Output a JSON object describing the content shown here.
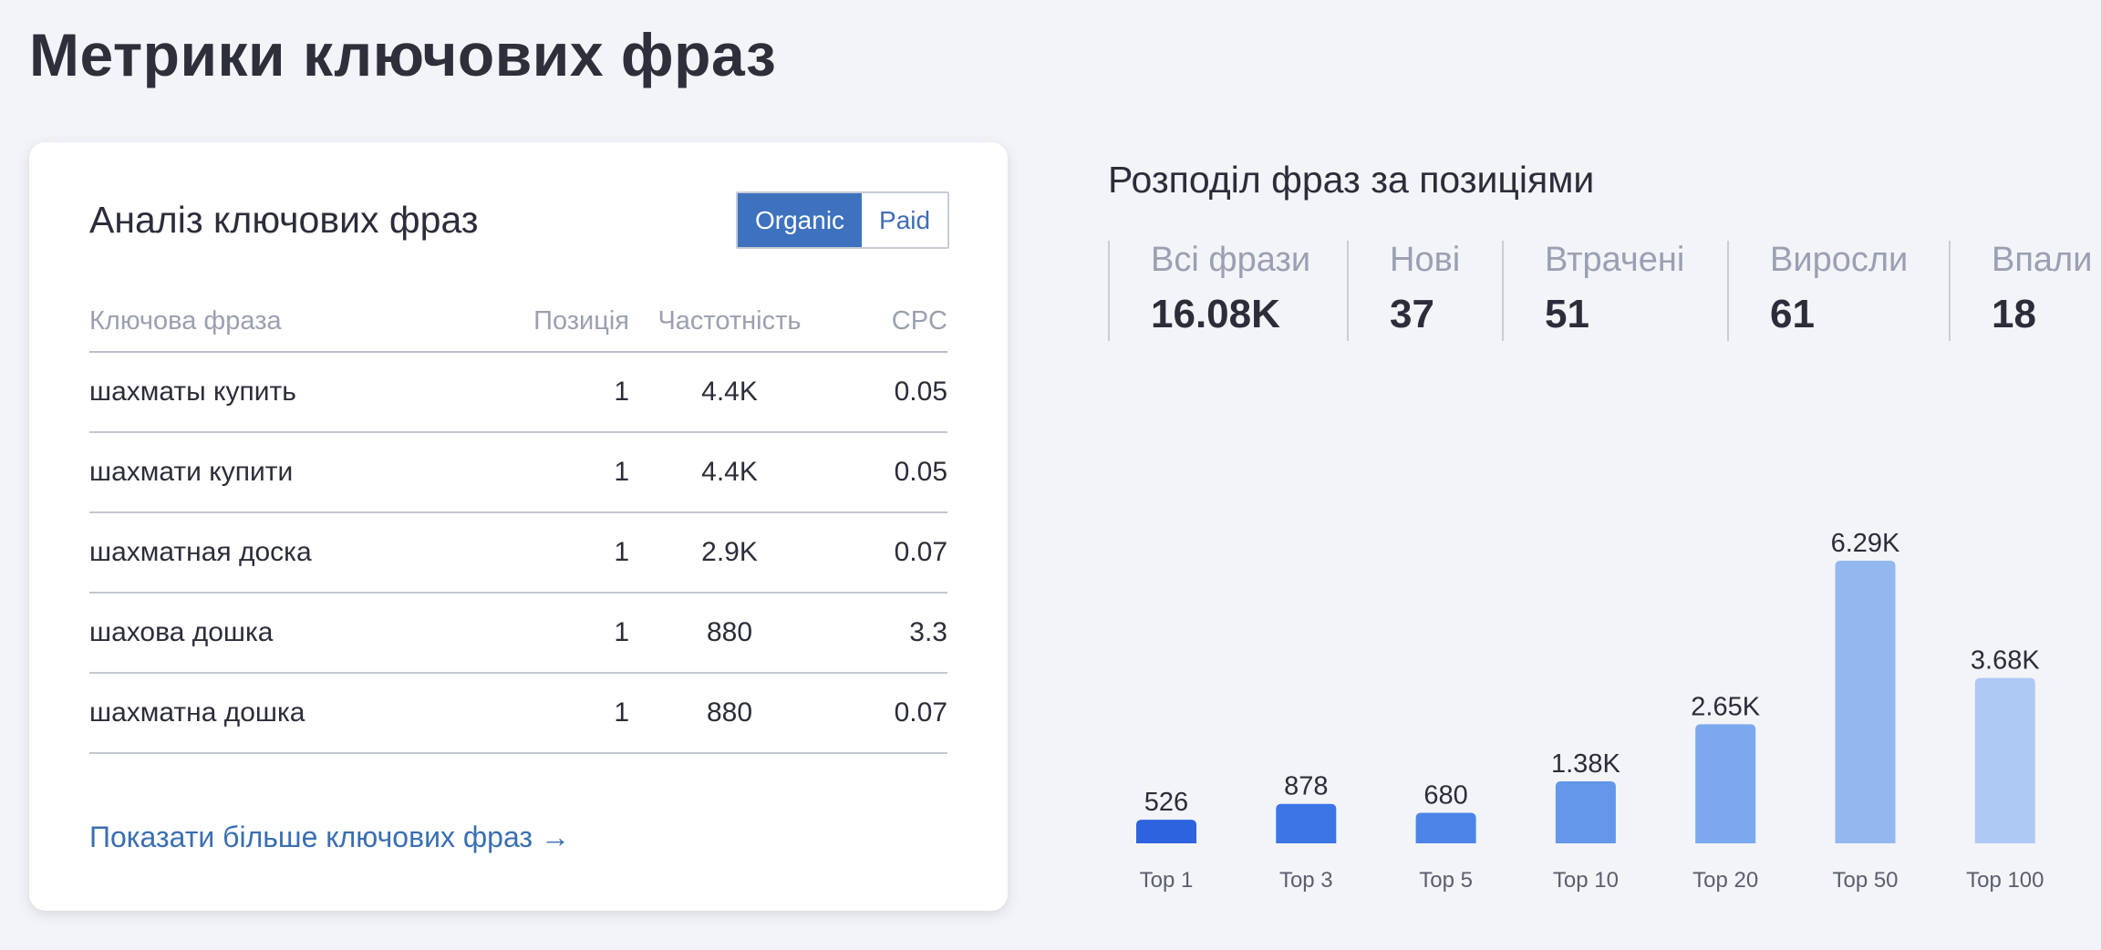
{
  "page": {
    "title": "Метрики ключових фраз"
  },
  "keywords_card": {
    "title": "Аналіз ключових фраз",
    "toggle": {
      "organic": "Organic",
      "paid": "Paid",
      "selected": "Organic"
    },
    "columns": [
      "Ключова фраза",
      "Позиція",
      "Частотність",
      "CPC"
    ],
    "rows": [
      {
        "keyword": "шахматы купить",
        "position": "1",
        "frequency": "4.4K",
        "cpc": "0.05"
      },
      {
        "keyword": "шахмати купити",
        "position": "1",
        "frequency": "4.4K",
        "cpc": "0.05"
      },
      {
        "keyword": "шахматная доска",
        "position": "1",
        "frequency": "2.9K",
        "cpc": "0.07"
      },
      {
        "keyword": "шахова дошка",
        "position": "1",
        "frequency": "880",
        "cpc": "3.3"
      },
      {
        "keyword": "шахматна дошка",
        "position": "1",
        "frequency": "880",
        "cpc": "0.07"
      }
    ],
    "more_link": "Показати більше ключових фраз →"
  },
  "distribution": {
    "title": "Розподіл фраз за позиціями",
    "stats": [
      {
        "label": "Всі фрази",
        "value": "16.08K"
      },
      {
        "label": "Нові",
        "value": "37"
      },
      {
        "label": "Втрачені",
        "value": "51"
      },
      {
        "label": "Виросли",
        "value": "61"
      },
      {
        "label": "Впали",
        "value": "18"
      }
    ]
  },
  "chart_data": {
    "type": "bar",
    "categories": [
      "Top 1",
      "Top 3",
      "Top 5",
      "Top 10",
      "Top 20",
      "Top 50",
      "Top 100"
    ],
    "values": [
      526,
      878,
      680,
      1380,
      2650,
      6290,
      3680
    ],
    "value_labels": [
      "526",
      "878",
      "680",
      "1.38K",
      "2.65K",
      "6.29K",
      "3.68K"
    ],
    "colors": [
      "#2e63e0",
      "#3b75e6",
      "#4d84e8",
      "#6496ea",
      "#7ca8ee",
      "#93b8f0",
      "#aec9f4"
    ],
    "title": "",
    "xlabel": "",
    "ylabel": "",
    "ylim": [
      0,
      6290
    ],
    "grid": false,
    "legend": "none"
  }
}
